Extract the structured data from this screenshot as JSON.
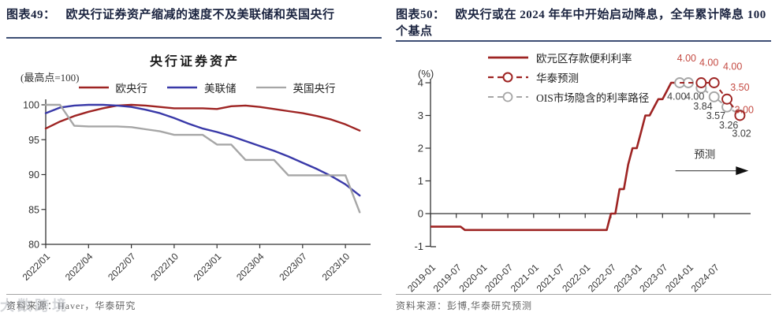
{
  "panels": {
    "left": {
      "figure_label": "图表49：",
      "figure_title": "欧央行证券资产缩减的速度不及美联储和英国央行",
      "source": "资料来源：Haver，华泰研究",
      "watermark": "大数跨境"
    },
    "right": {
      "figure_label": "图表50：",
      "figure_title": "欧央行或在 2024 年年中开始启动降息，全年累计降息 100 个基点",
      "source": "资料来源：彭博,华泰研究预测"
    }
  },
  "chart_data": [
    {
      "type": "line",
      "title": "央行证券资产",
      "unit_note": "(最高点=100)",
      "x_start": "2022/01",
      "x_step": "monthly",
      "x_tick_labels": [
        "2022/01",
        "2022/04",
        "2022/07",
        "2022/10",
        "2023/01",
        "2023/04",
        "2023/07",
        "2023/10"
      ],
      "ylim": [
        80,
        100
      ],
      "yticks": [
        100,
        95,
        90,
        85,
        80
      ],
      "legend_position": "top",
      "grid": false,
      "series": [
        {
          "id": "ecb",
          "name": "欧央行",
          "color": "#9e2423",
          "values": [
            96.6,
            97.6,
            98.4,
            99.0,
            99.5,
            99.9,
            100.0,
            99.9,
            99.7,
            99.5,
            99.5,
            99.5,
            99.4,
            99.8,
            99.9,
            99.7,
            99.4,
            99.1,
            98.8,
            98.4,
            97.9,
            97.2,
            96.3
          ]
        },
        {
          "id": "fed",
          "name": "美联储",
          "color": "#3939a8",
          "values": [
            98.8,
            99.6,
            99.9,
            100.0,
            100.0,
            99.9,
            99.7,
            99.3,
            98.8,
            98.1,
            97.3,
            96.6,
            96.1,
            95.5,
            94.8,
            94.1,
            93.4,
            92.6,
            91.7,
            90.8,
            89.8,
            88.6,
            87.0
          ]
        },
        {
          "id": "boe",
          "name": "英国央行",
          "color": "#a6a6a6",
          "values": [
            100.0,
            100.0,
            97.0,
            96.9,
            96.9,
            96.9,
            96.8,
            96.5,
            96.2,
            95.7,
            95.7,
            95.7,
            94.3,
            94.3,
            92.1,
            92.1,
            92.1,
            89.9,
            89.9,
            89.9,
            89.9,
            89.9,
            84.6
          ]
        }
      ]
    },
    {
      "type": "line",
      "ylabel": "(%)",
      "x_start": "2019-01",
      "x_step": "monthly",
      "x_tick_labels": [
        "2019-01",
        "2019-07",
        "2020-01",
        "2020-07",
        "2021-01",
        "2021-07",
        "2022-01",
        "2022-07",
        "2023-01",
        "2023-07",
        "2024-01",
        "2024-07"
      ],
      "ylim": [
        -1,
        4
      ],
      "yticks": [
        4,
        3,
        2,
        1,
        0,
        -1
      ],
      "legend_position": "top-left",
      "grid": false,
      "series": [
        {
          "id": "deposit-rate",
          "name": "欧元区存款便利利率",
          "color": "#9e2423",
          "style": "solid",
          "values": [
            -0.4,
            -0.4,
            -0.4,
            -0.4,
            -0.4,
            -0.4,
            -0.4,
            -0.4,
            -0.5,
            -0.5,
            -0.5,
            -0.5,
            -0.5,
            -0.5,
            -0.5,
            -0.5,
            -0.5,
            -0.5,
            -0.5,
            -0.5,
            -0.5,
            -0.5,
            -0.5,
            -0.5,
            -0.5,
            -0.5,
            -0.5,
            -0.5,
            -0.5,
            -0.5,
            -0.5,
            -0.5,
            -0.5,
            -0.5,
            -0.5,
            -0.5,
            -0.5,
            -0.5,
            -0.5,
            -0.5,
            -0.5,
            -0.5,
            0.0,
            0.0,
            0.75,
            0.75,
            1.5,
            2.0,
            2.0,
            2.5,
            3.0,
            3.0,
            3.25,
            3.5,
            3.5,
            3.75,
            4.0,
            4.0,
            4.0
          ]
        },
        {
          "id": "huatai-forecast",
          "name": "华泰预测",
          "color": "#9e2423",
          "style": "dashed-circle",
          "marker_skip_first": true,
          "x_months": [
            58,
            63,
            66,
            69,
            72
          ],
          "values": [
            4.0,
            4.0,
            4.0,
            3.5,
            3.0
          ]
        },
        {
          "id": "ois-path",
          "name": "OIS市场隐含的利率路径",
          "color": "#a6a6a6",
          "style": "dashed-circle",
          "marker_skip_first": false,
          "x_months": [
            58,
            60,
            63,
            66,
            69,
            72
          ],
          "values": [
            4.0,
            4.0,
            3.84,
            3.57,
            3.26,
            3.02
          ]
        }
      ],
      "point_labels": [
        {
          "text": "4.00",
          "x_month": 59.6,
          "value": 4.75,
          "color": "#c44a42"
        },
        {
          "text": "4.00",
          "x_month": 64.8,
          "value": 4.62,
          "color": "#c44a42"
        },
        {
          "text": "4.00",
          "x_month": 70.3,
          "value": 4.5,
          "color": "#c44a42"
        },
        {
          "text": "3.50",
          "x_month": 72.0,
          "value": 3.85,
          "color": "#c44a42"
        },
        {
          "text": "3.00",
          "x_month": 73.0,
          "value": 3.17,
          "color": "#c44a42"
        },
        {
          "text": "4.00",
          "x_month": 57.3,
          "value": 3.58,
          "color": "#3f3f3f"
        },
        {
          "text": "4.00",
          "x_month": 61.5,
          "value": 3.58,
          "color": "#3f3f3f"
        },
        {
          "text": "3.84",
          "x_month": 63.4,
          "value": 3.28,
          "color": "#3f3f3f"
        },
        {
          "text": "3.57",
          "x_month": 66.4,
          "value": 2.99,
          "color": "#3f3f3f"
        },
        {
          "text": "3.26",
          "x_month": 69.4,
          "value": 2.7,
          "color": "#3f3f3f"
        },
        {
          "text": "3.02",
          "x_month": 72.4,
          "value": 2.45,
          "color": "#3f3f3f"
        }
      ],
      "annotation": {
        "text": "预测",
        "label_x_month": 63.8,
        "label_value": 1.8,
        "arrow_from_month": 57.0,
        "arrow_to_month": 74.0,
        "arrow_value": 1.31
      }
    }
  ]
}
